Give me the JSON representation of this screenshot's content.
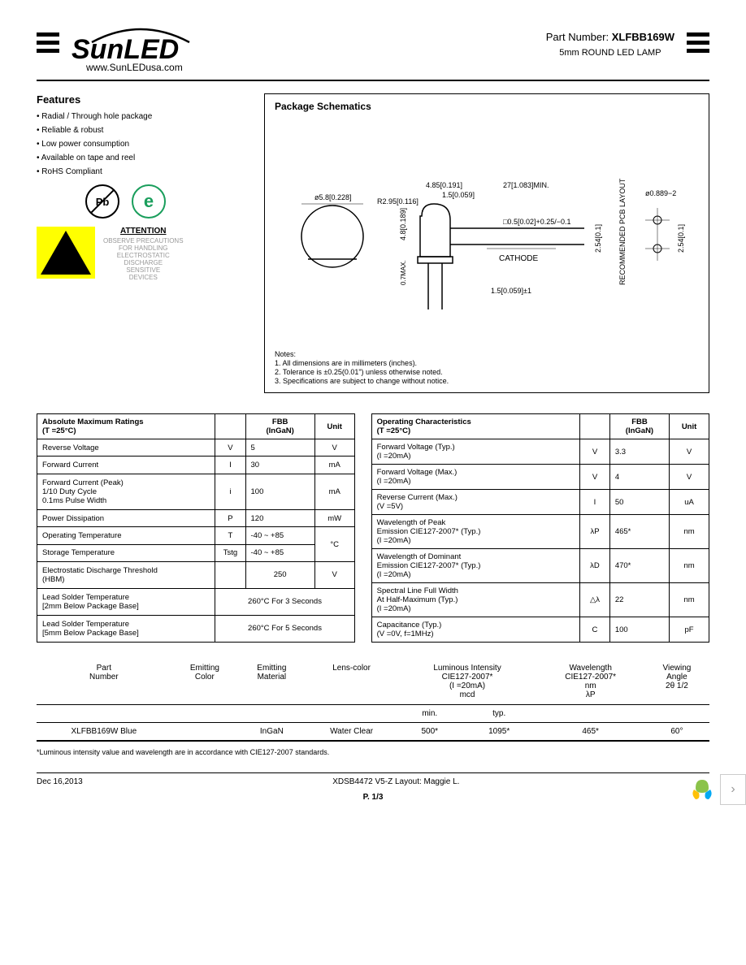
{
  "header": {
    "logo_top": "SunLED",
    "logo_url": "www.SunLEDusa.com",
    "part_number_label": "Part Number:",
    "part_number": "XLFBB169W",
    "product_desc": "5mm ROUND LED LAMP"
  },
  "features": {
    "title": "Features",
    "items": [
      "Radial / Through hole package",
      "Reliable & robust",
      "Low power consumption",
      "Available on tape and reel",
      "RoHS Compliant"
    ]
  },
  "badges": {
    "pb": "Pb",
    "e": "e"
  },
  "attention": {
    "title": "ATTENTION",
    "lines": [
      "OBSERVE PRECAUTIONS",
      "FOR HANDLING",
      "ELECTROSTATIC",
      "DISCHARGE",
      "SENSITIVE",
      "DEVICES"
    ]
  },
  "schematic": {
    "title": "Package Schematics",
    "dims": {
      "d1": "ø5.8[0.228]",
      "d2": "R2.95[0.116]",
      "d3": "4.85[0.191]",
      "d4": "1.5[0.059]",
      "d5": "27[1.083]MIN.",
      "d6": "4.8[0.189]",
      "d7": "0.7MAX.",
      "d8": "□0.5[0.02]+0.25/−0.1",
      "d9": "CATHODE",
      "d10": "1.5[0.059]±1",
      "d11": "2.54[0.1]",
      "d12": "RECOMMENDED PCB LAYOUT",
      "d13": "ø0.889−2",
      "d14": "2.54[0.1]"
    },
    "notes_title": "Notes:",
    "notes": [
      "1. All dimensions are in millimeters (inches).",
      "2. Tolerance is ±0.25(0.01\") unless otherwise noted.",
      "3. Specifications are subject to change without notice."
    ]
  },
  "abs_max": {
    "title": "Absolute Maximum Ratings",
    "cond": "(T  =25°C)",
    "material": "FBB",
    "material_sub": "(InGaN)",
    "unit_label": "Unit",
    "rows": [
      {
        "param": "Reverse Voltage",
        "sym": "V",
        "val": "5",
        "unit": "V"
      },
      {
        "param": "Forward Current",
        "sym": "I",
        "val": "30",
        "unit": "mA"
      },
      {
        "param": "Forward Current (Peak)\n1/10 Duty Cycle\n0.1ms Pulse Width",
        "sym": "i",
        "val": "100",
        "unit": "mA"
      },
      {
        "param": "Power Dissipation",
        "sym": "P",
        "val": "120",
        "unit": "mW"
      },
      {
        "param": "Operating Temperature",
        "sym": "T",
        "val": "-40 ~ +85",
        "unit": "°C"
      },
      {
        "param": "Storage Temperature",
        "sym": "Tstg",
        "val": "-40 ~ +85",
        "unit": "°C"
      },
      {
        "param": "Electrostatic Discharge Threshold\n(HBM)",
        "sym": "",
        "val": "250",
        "unit": "V"
      },
      {
        "param": "Lead Solder Temperature\n[2mm Below Package Base]",
        "sym": "",
        "val": "260°C For 3 Seconds",
        "unit": ""
      },
      {
        "param": "Lead Solder Temperature\n[5mm Below Package Base]",
        "sym": "",
        "val": "260°C For 5 Seconds",
        "unit": ""
      }
    ]
  },
  "op_char": {
    "title": "Operating Characteristics",
    "cond": "(T  =25°C)",
    "material": "FBB",
    "material_sub": "(InGaN)",
    "unit_label": "Unit",
    "rows": [
      {
        "param": "Forward Voltage (Typ.)\n(I  =20mA)",
        "sym": "V",
        "val": "3.3",
        "unit": "V"
      },
      {
        "param": "Forward Voltage (Max.)\n(I  =20mA)",
        "sym": "V",
        "val": "4",
        "unit": "V"
      },
      {
        "param": "Reverse Current (Max.)\n(V  =5V)",
        "sym": "I",
        "val": "50",
        "unit": "uA"
      },
      {
        "param": "Wavelength of Peak\nEmission CIE127-2007*        (Typ.)\n(I  =20mA)",
        "sym": "λP",
        "val": "465*",
        "unit": "nm"
      },
      {
        "param": "Wavelength of Dominant\nEmission CIE127-2007*        (Typ.)\n(I  =20mA)",
        "sym": "λD",
        "val": "470*",
        "unit": "nm"
      },
      {
        "param": "Spectral Line Full Width\nAt Half-Maximum (Typ.)\n(I  =20mA)",
        "sym": "△λ",
        "val": "22",
        "unit": "nm"
      },
      {
        "param": "Capacitance (Typ.)\n(V  =0V, f=1MHz)",
        "sym": "C",
        "val": "100",
        "unit": "pF"
      }
    ]
  },
  "summary": {
    "headers": {
      "c1": "Part\nNumber",
      "c2": "Emitting\nColor",
      "c3": "Emitting\nMaterial",
      "c4": "Lens-color",
      "c5": "Luminous Intensity\nCIE127-2007*\n(I  =20mA)\nmcd",
      "c6": "Wavelength\nCIE127-2007*\nnm\nλP",
      "c7": "Viewing\nAngle\n2θ 1/2"
    },
    "sub": {
      "min": "min.",
      "typ": "typ."
    },
    "row": {
      "part": "XLFBB169W",
      "color": "Blue",
      "material": "InGaN",
      "lens": "Water Clear",
      "min": "500*",
      "typ": "1095*",
      "wave": "465*",
      "angle": "60°"
    },
    "footnote": "*Luminous intensity value and wavelength are in accordance with CIE127-2007 standards."
  },
  "footer": {
    "date": "Dec 16,2013",
    "doc": "XDSB4472    V5-Z    Layout: Maggie L.",
    "page": "P. 1/3"
  },
  "styling": {
    "bg": "#ffffff",
    "border": "#000000",
    "esd_bg": "#ffff00",
    "green_badge": "#1a9e5c",
    "text_faded": "#999999"
  }
}
